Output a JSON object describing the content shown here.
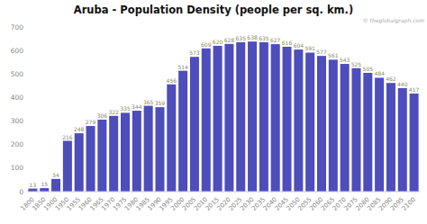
{
  "chart_data": {
    "type": "bar",
    "title": "Aruba - Population Density (people per sq. km.)",
    "annotations": [
      "© theglobalgraph.com"
    ],
    "categories": [
      1800,
      1850,
      1900,
      1950,
      1955,
      1960,
      1965,
      1970,
      1975,
      1980,
      1985,
      1990,
      1995,
      2000,
      2005,
      2010,
      2015,
      2020,
      2025,
      2030,
      2035,
      2040,
      2045,
      2050,
      2055,
      2060,
      2065,
      2070,
      2075,
      2080,
      2085,
      2090,
      2095,
      2100
    ],
    "values": [
      13,
      15,
      54,
      216,
      248,
      279,
      306,
      322,
      335,
      344,
      365,
      359,
      456,
      514,
      573,
      609,
      620,
      628,
      635,
      638,
      635,
      627,
      616,
      604,
      591,
      577,
      561,
      543,
      525,
      505,
      484,
      462,
      440,
      417
    ],
    "color": "#4d4dbb",
    "ylim": [
      0,
      700
    ],
    "yticks": [
      0,
      100,
      200,
      300,
      400,
      500,
      600,
      700
    ],
    "data_labels": true,
    "grid": false
  }
}
